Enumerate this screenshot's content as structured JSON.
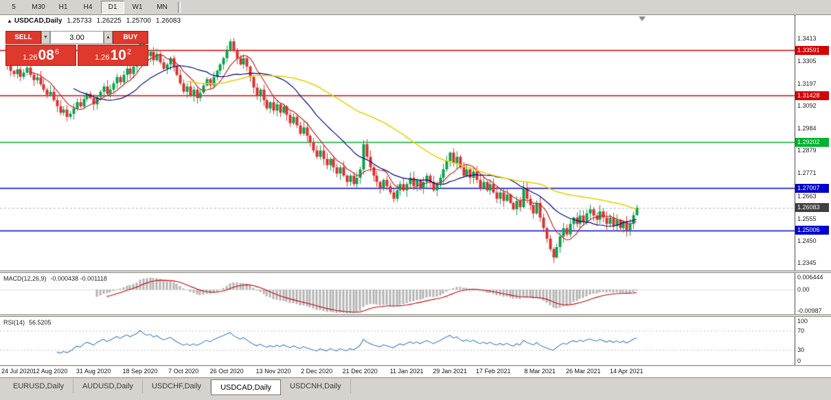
{
  "toolbar": {
    "timeframes": [
      {
        "label": "5",
        "active": false
      },
      {
        "label": "M30",
        "active": false
      },
      {
        "label": "H1",
        "active": false
      },
      {
        "label": "H4",
        "active": false
      },
      {
        "label": "D1",
        "active": true
      },
      {
        "label": "W1",
        "active": false
      },
      {
        "label": "MN",
        "active": false
      }
    ]
  },
  "chart_header": {
    "symbol": "USDCAD,Daily",
    "open": "1.25733",
    "high": "1.26225",
    "low": "1.25700",
    "close": "1.26083"
  },
  "trade_panel": {
    "sell_label": "SELL",
    "buy_label": "BUY",
    "volume": "3.00",
    "icons": {
      "down": "▼",
      "up": "▲"
    },
    "sell_price": {
      "prefix": "1.26",
      "pips": "08",
      "pipette": "6"
    },
    "buy_price": {
      "prefix": "1.26",
      "pips": "10",
      "pipette": "2"
    }
  },
  "price_axis": {
    "ticks": [
      "1.3413",
      "1.3305",
      "1.3197",
      "1.3092",
      "1.2984",
      "1.2879",
      "1.2771",
      "1.2663",
      "1.2555",
      "1.2450",
      "1.2345"
    ],
    "current": {
      "label": "1.26083",
      "price": 1.26083,
      "bg": "#404040"
    }
  },
  "levels": [
    {
      "label": "1.33591",
      "price": 1.33591,
      "color": "#d40000"
    },
    {
      "label": "1.31428",
      "price": 1.31428,
      "color": "#d40000"
    },
    {
      "label": "1.29202",
      "price": 1.29202,
      "color": "#00b22d"
    },
    {
      "label": "1.27007",
      "price": 1.27007,
      "color": "#0000cc"
    },
    {
      "label": "1.25006",
      "price": 1.25006,
      "color": "#0000cc"
    }
  ],
  "indicators": {
    "macd": {
      "name": "MACD(12,26,9)",
      "values": "-0.000438 -0.001118",
      "axis": [
        {
          "label": "0.006444",
          "value": 0.006444
        },
        {
          "label": "0.00",
          "value": 0
        },
        {
          "label": "-0.00987",
          "value": -0.00987
        }
      ],
      "histogram_color": "#b4b4b4",
      "signal_color": "#cc0000"
    },
    "rsi": {
      "name": "RSI(14)",
      "value": "56.5205",
      "axis": [
        {
          "label": "100",
          "value": 100
        },
        {
          "label": "70",
          "value": 70
        },
        {
          "label": "30",
          "value": 30
        },
        {
          "label": "0",
          "value": 0
        }
      ],
      "levels": [
        70,
        30
      ],
      "line_color": "#3f7fbf"
    }
  },
  "date_axis": [
    {
      "label": "24 Jul 2020",
      "index": 0
    },
    {
      "label": "12 Aug 2020",
      "index": 13
    },
    {
      "label": "31 Aug 2020",
      "index": 26
    },
    {
      "label": "18 Sep 2020",
      "index": 40
    },
    {
      "label": "7 Oct 2020",
      "index": 53
    },
    {
      "label": "26 Oct 2020",
      "index": 66
    },
    {
      "label": "13 Nov 2020",
      "index": 80
    },
    {
      "label": "2 Dec 2020",
      "index": 93
    },
    {
      "label": "21 Dec 2020",
      "index": 106
    },
    {
      "label": "11 Jan 2021",
      "index": 120
    },
    {
      "label": "29 Jan 2021",
      "index": 133
    },
    {
      "label": "17 Feb 2021",
      "index": 146
    },
    {
      "label": "8 Mar 2021",
      "index": 160
    },
    {
      "label": "26 Mar 2021",
      "index": 173
    },
    {
      "label": "14 Apr 2021",
      "index": 186
    }
  ],
  "tabs": [
    {
      "label": "EURUSD,Daily",
      "active": false
    },
    {
      "label": "AUDUSD,Daily",
      "active": false
    },
    {
      "label": "USDCHF,Daily",
      "active": false
    },
    {
      "label": "USDCAD,Daily",
      "active": true
    },
    {
      "label": "USDCNH,Daily",
      "active": false
    }
  ],
  "chart_data": {
    "type": "candlestick",
    "symbol": "USDCAD",
    "timeframe": "Daily",
    "ylim": [
      1.231,
      1.35
    ],
    "up_color": "#0aa14e",
    "down_color": "#dd3030",
    "moving_averages": [
      {
        "period": 8,
        "color": "#cc2020"
      },
      {
        "period": 21,
        "color": "#000080"
      },
      {
        "period": 55,
        "color": "#e6d400"
      }
    ],
    "last_candle": {
      "o": 1.25733,
      "h": 1.26225,
      "l": 1.257,
      "c": 1.26083
    },
    "closes": [
      1.3285,
      1.326,
      1.3245,
      1.3268,
      1.3232,
      1.3252,
      1.3276,
      1.3241,
      1.3216,
      1.323,
      1.3196,
      1.3171,
      1.3146,
      1.3161,
      1.3121,
      1.3092,
      1.3061,
      1.3076,
      1.3041,
      1.3056,
      1.3081,
      1.3111,
      1.3091,
      1.3126,
      1.3151,
      1.3131,
      1.3101,
      1.3136,
      1.3161,
      1.3186,
      1.3151,
      1.3171,
      1.3201,
      1.3231,
      1.3206,
      1.3241,
      1.3271,
      1.3246,
      1.3281,
      1.3311,
      1.3401,
      1.3356,
      1.3331,
      1.3351,
      1.3311,
      1.3341,
      1.3301,
      1.3271,
      1.3291,
      1.3321,
      1.3281,
      1.3241,
      1.3201,
      1.3161,
      1.3186,
      1.3141,
      1.3171,
      1.3131,
      1.3156,
      1.3191,
      1.3221,
      1.3191,
      1.3231,
      1.3261,
      1.3291,
      1.3321,
      1.3361,
      1.3401,
      1.3356,
      1.3321,
      1.3291,
      1.3321,
      1.3281,
      1.3231,
      1.3181,
      1.3141,
      1.3171,
      1.3121,
      1.3081,
      1.3111,
      1.3071,
      1.3101,
      1.3061,
      1.3091,
      1.3051,
      1.3011,
      1.3041,
      1.3001,
      1.2961,
      1.2991,
      1.2951,
      1.2921,
      1.2881,
      1.2851,
      1.2881,
      1.2841,
      1.2811,
      1.2841,
      1.2801,
      1.2771,
      1.2801,
      1.2761,
      1.2731,
      1.2761,
      1.2721,
      1.2751,
      1.2791,
      1.2911,
      1.2851,
      1.2801,
      1.2761,
      1.2731,
      1.2701,
      1.2741,
      1.2711,
      1.2681,
      1.2651,
      1.2691,
      1.2721,
      1.2691,
      1.2721,
      1.2751,
      1.2711,
      1.2741,
      1.2701,
      1.2731,
      1.2761,
      1.2731,
      1.2691,
      1.2721,
      1.2751,
      1.2791,
      1.2831,
      1.2871,
      1.2821,
      1.2851,
      1.2801,
      1.2761,
      1.2791,
      1.2751,
      1.2781,
      1.2741,
      1.2701,
      1.2731,
      1.2691,
      1.2721,
      1.2681,
      1.2651,
      1.2681,
      1.2641,
      1.2671,
      1.2631,
      1.2601,
      1.2641,
      1.2611,
      1.2701,
      1.2651,
      1.2621,
      1.2581,
      1.2631,
      1.2561,
      1.2511,
      1.2461,
      1.2411,
      1.2371,
      1.2421,
      1.2471,
      1.2511,
      1.2481,
      1.2531,
      1.2561,
      1.2531,
      1.2571,
      1.2541,
      1.2581,
      1.2601,
      1.2571,
      1.2551,
      1.2591,
      1.2561,
      1.2531,
      1.2561,
      1.2521,
      1.2551,
      1.2511,
      1.2541,
      1.2501,
      1.2531,
      1.2573,
      1.26083
    ]
  }
}
